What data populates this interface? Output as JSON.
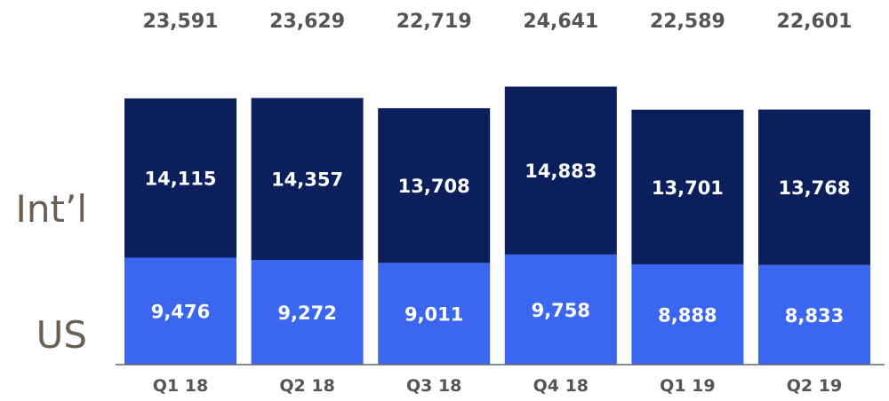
{
  "chart_data": {
    "type": "bar",
    "stacked": true,
    "categories": [
      "Q1 18",
      "Q2 18",
      "Q3 18",
      "Q4 18",
      "Q1 19",
      "Q2 19"
    ],
    "series": [
      {
        "name": "US",
        "values": [
          9476,
          9272,
          9011,
          9758,
          8888,
          8833
        ],
        "labels": [
          "9,476",
          "9,272",
          "9,011",
          "9,758",
          "8,888",
          "8,833"
        ]
      },
      {
        "name": "Int’l",
        "values": [
          14115,
          14357,
          13708,
          14883,
          13701,
          13768
        ],
        "labels": [
          "14,115",
          "14,357",
          "13,708",
          "14,883",
          "13,701",
          "13,768"
        ]
      }
    ],
    "totals": [
      23591,
      23629,
      22719,
      24641,
      22589,
      22601
    ],
    "total_labels": [
      "23,591",
      "23,629",
      "22,719",
      "24,641",
      "22,589",
      "22,601"
    ],
    "title": "",
    "xlabel": "",
    "ylabel": "",
    "ylim": [
      0,
      25000
    ],
    "grid": false,
    "legend": "left, inline with segments"
  },
  "colors": {
    "us": "#3a66f0",
    "intl": "#0b1f5c",
    "total_text": "#555555",
    "side_text": "#6b5e52",
    "tick_text": "#555555",
    "axis": "#666666",
    "segment_text": "#ffffff"
  }
}
